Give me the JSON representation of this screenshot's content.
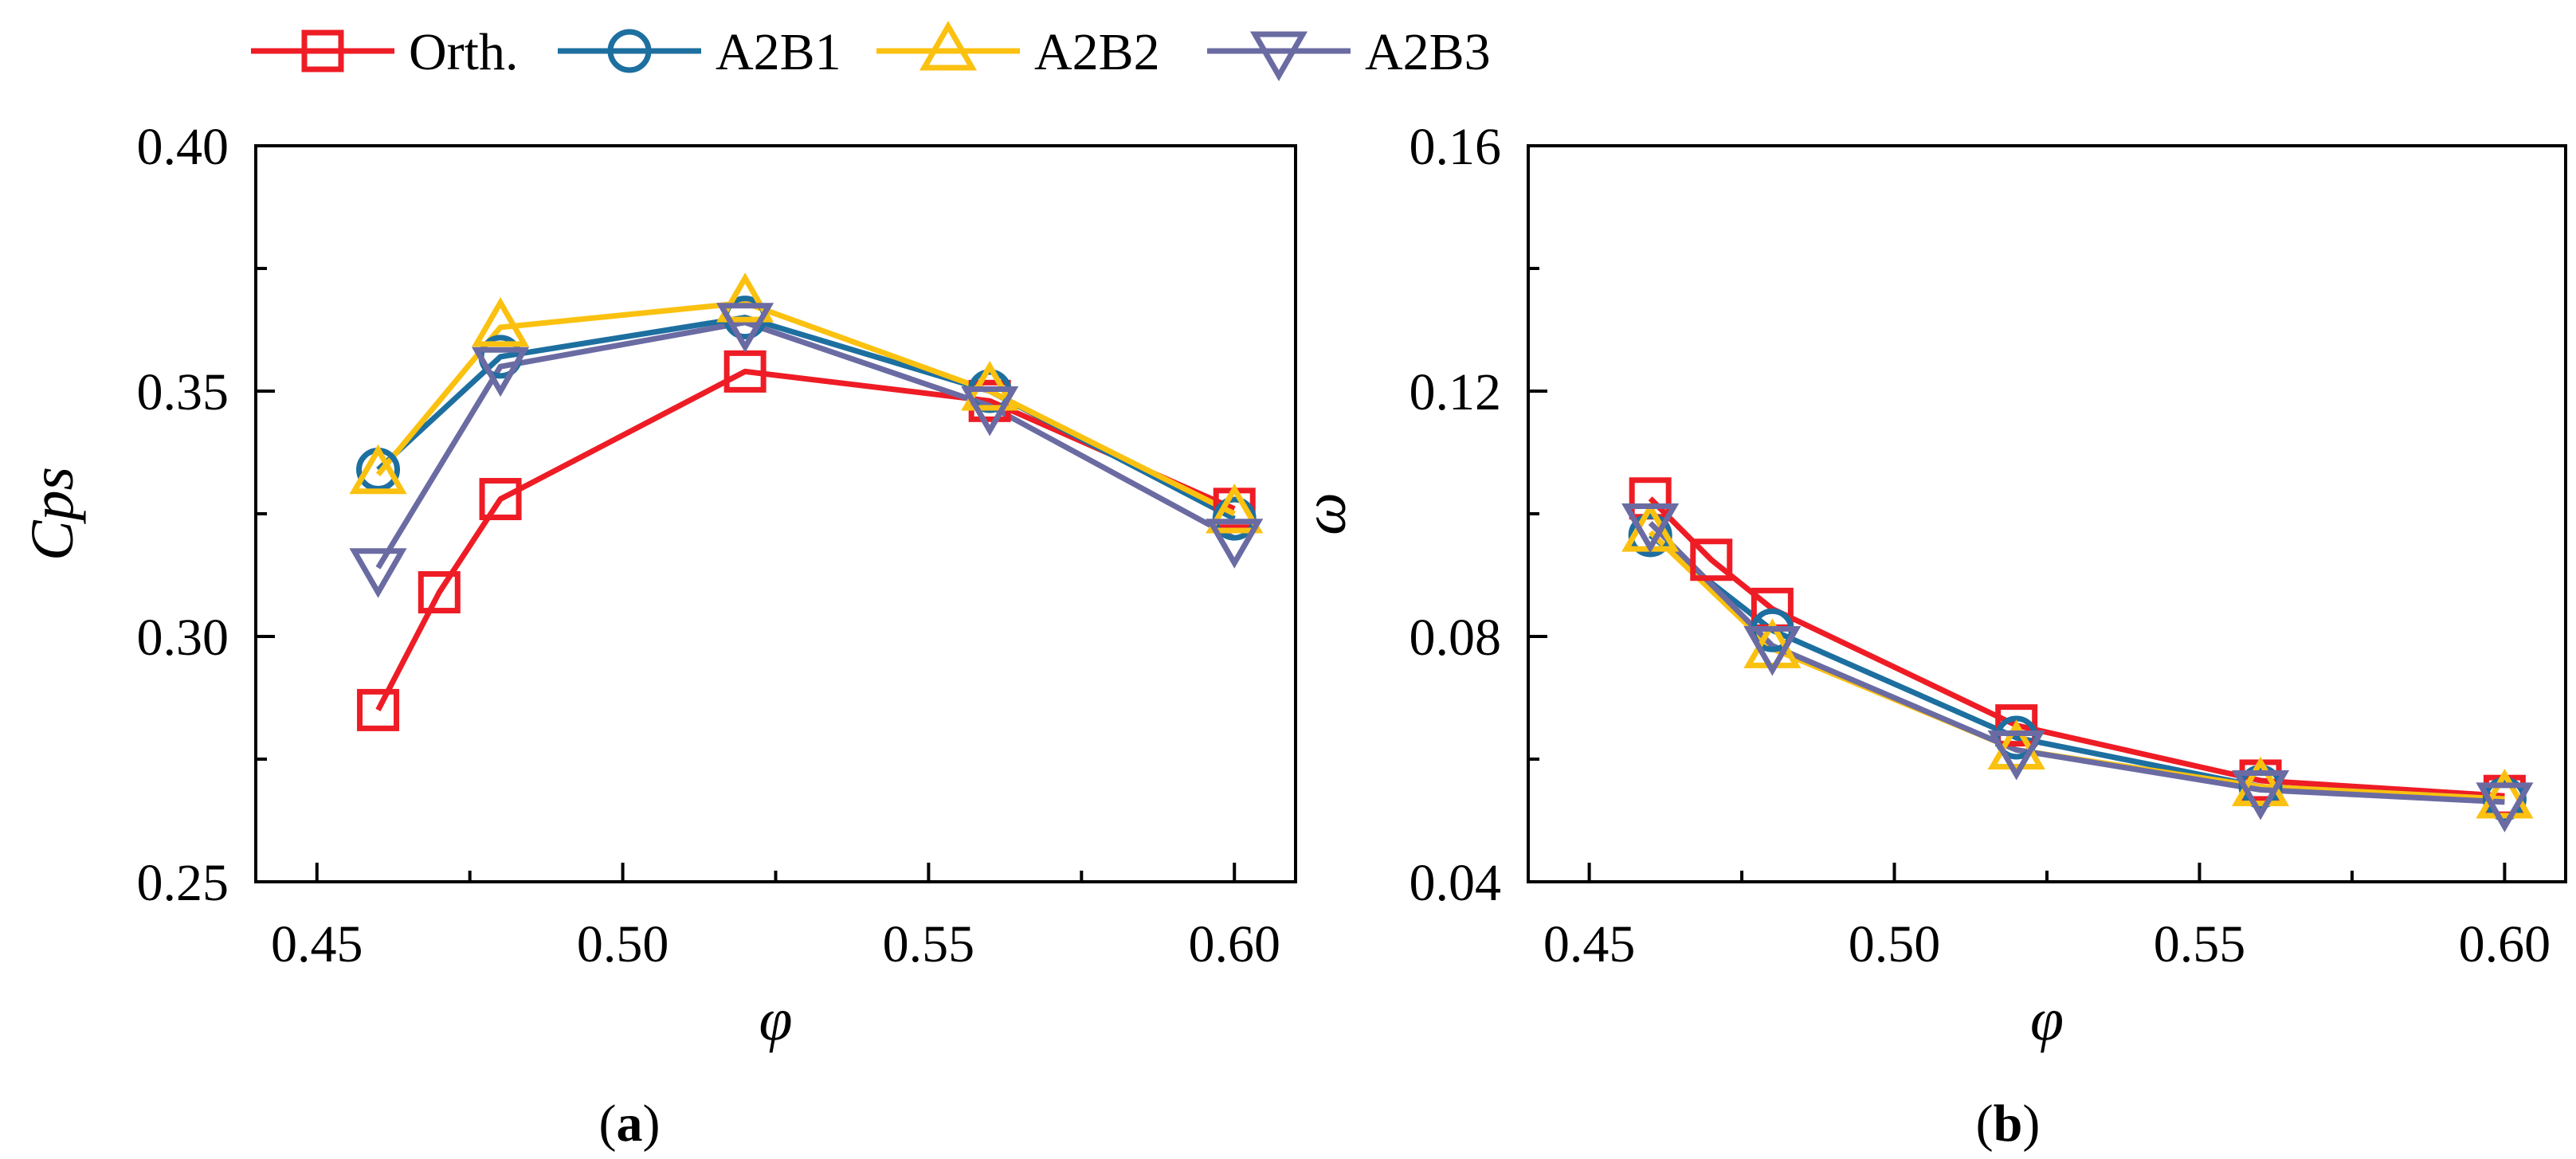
{
  "figure": {
    "legend": [
      {
        "name": "Orth.",
        "color": "#ee1c25",
        "marker": "square"
      },
      {
        "name": "A2B1",
        "color": "#1d6fa0",
        "marker": "circle"
      },
      {
        "name": "A2B2",
        "color": "#fbc110",
        "marker": "triangle-up"
      },
      {
        "name": "A2B3",
        "color": "#6b6ba3",
        "marker": "triangle-down"
      }
    ]
  },
  "chart_data": [
    {
      "type": "line",
      "panel_label": "(a)",
      "panel_letter": "a",
      "xlabel": "φ",
      "ylabel": "Cps",
      "xlim": [
        0.44,
        0.61
      ],
      "ylim": [
        0.25,
        0.4
      ],
      "xticks": [
        0.45,
        0.5,
        0.55,
        0.6
      ],
      "xtick_labels": [
        "0.45",
        "0.50",
        "0.55",
        "0.60"
      ],
      "yticks": [
        0.25,
        0.3,
        0.35,
        0.4
      ],
      "ytick_labels": [
        "0.25",
        "0.30",
        "0.35",
        "0.40"
      ],
      "x_minor_ticks": [
        0.475,
        0.525,
        0.575
      ],
      "y_minor_ticks": [
        0.275,
        0.325,
        0.375
      ],
      "series": [
        {
          "name": "Orth.",
          "x": [
            0.46,
            0.47,
            0.48,
            0.52,
            0.56,
            0.6
          ],
          "values": [
            0.285,
            0.309,
            0.328,
            0.354,
            0.348,
            0.326
          ]
        },
        {
          "name": "A2B1",
          "x": [
            0.46,
            0.48,
            0.52,
            0.56,
            0.6
          ],
          "values": [
            0.334,
            0.357,
            0.365,
            0.35,
            0.324
          ]
        },
        {
          "name": "A2B2",
          "x": [
            0.46,
            0.48,
            0.52,
            0.56,
            0.6
          ],
          "values": [
            0.333,
            0.363,
            0.368,
            0.35,
            0.325
          ]
        },
        {
          "name": "A2B3",
          "x": [
            0.46,
            0.48,
            0.52,
            0.56,
            0.6
          ],
          "values": [
            0.314,
            0.355,
            0.364,
            0.347,
            0.32
          ]
        }
      ]
    },
    {
      "type": "line",
      "panel_label": "(b)",
      "panel_letter": "b",
      "xlabel": "φ",
      "ylabel": "ω",
      "xlim": [
        0.44,
        0.61
      ],
      "ylim": [
        0.04,
        0.16
      ],
      "xticks": [
        0.45,
        0.5,
        0.55,
        0.6
      ],
      "xtick_labels": [
        "0.45",
        "0.50",
        "0.55",
        "0.60"
      ],
      "yticks": [
        0.04,
        0.08,
        0.12,
        0.16
      ],
      "ytick_labels": [
        "0.04",
        "0.08",
        "0.12",
        "0.16"
      ],
      "x_minor_ticks": [
        0.475,
        0.525,
        0.575
      ],
      "y_minor_ticks": [
        0.06,
        0.1,
        0.14
      ],
      "series": [
        {
          "name": "Orth.",
          "x": [
            0.46,
            0.47,
            0.48,
            0.52,
            0.56,
            0.6
          ],
          "values": [
            0.1025,
            0.0925,
            0.0845,
            0.0655,
            0.0565,
            0.054
          ]
        },
        {
          "name": "A2B1",
          "x": [
            0.46,
            0.48,
            0.52,
            0.56,
            0.6
          ],
          "values": [
            0.0965,
            0.081,
            0.0635,
            0.0555,
            0.0535
          ]
        },
        {
          "name": "A2B2",
          "x": [
            0.46,
            0.48,
            0.52,
            0.56,
            0.6
          ],
          "values": [
            0.097,
            0.078,
            0.0615,
            0.0555,
            0.0535
          ]
        },
        {
          "name": "A2B3",
          "x": [
            0.46,
            0.48,
            0.52,
            0.56,
            0.6
          ],
          "values": [
            0.0985,
            0.0785,
            0.0615,
            0.055,
            0.053
          ]
        }
      ]
    }
  ]
}
